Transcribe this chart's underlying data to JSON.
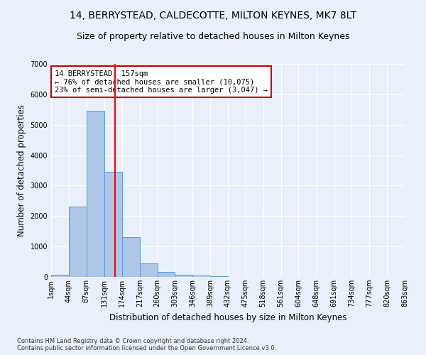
{
  "title1": "14, BERRYSTEAD, CALDECOTTE, MILTON KEYNES, MK7 8LT",
  "title2": "Size of property relative to detached houses in Milton Keynes",
  "xlabel": "Distribution of detached houses by size in Milton Keynes",
  "ylabel": "Number of detached properties",
  "footnote": "Contains HM Land Registry data © Crown copyright and database right 2024.\nContains public sector information licensed under the Open Government Licence v3.0.",
  "bin_edges": [
    1,
    44,
    87,
    131,
    174,
    217,
    260,
    303,
    346,
    389,
    432,
    475,
    518,
    561,
    604,
    648,
    691,
    734,
    777,
    820,
    863
  ],
  "bar_heights": [
    80,
    2300,
    5450,
    3450,
    1300,
    450,
    160,
    80,
    50,
    30,
    0,
    0,
    0,
    0,
    0,
    0,
    0,
    0,
    0,
    0
  ],
  "bar_color": "#aec6e8",
  "bar_edge_color": "#5b9bd5",
  "red_line_x": 157,
  "ylim": [
    0,
    7000
  ],
  "annotation_text": "14 BERRYSTEAD: 157sqm\n← 76% of detached houses are smaller (10,075)\n23% of semi-detached houses are larger (3,047) →",
  "annotation_box_color": "#ffffff",
  "annotation_box_edge": "#cc0000",
  "bg_color": "#eaf0fb",
  "grid_color": "#ffffff",
  "title1_fontsize": 10,
  "title2_fontsize": 9,
  "tick_fontsize": 7,
  "ylabel_fontsize": 8.5,
  "xlabel_fontsize": 8.5,
  "annot_fontsize": 7.5
}
